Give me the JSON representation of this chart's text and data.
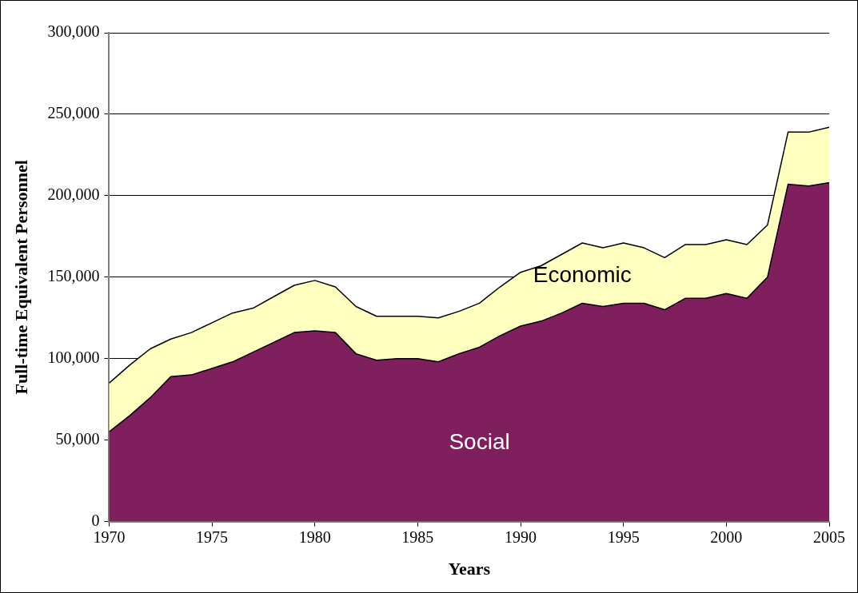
{
  "chart_data": {
    "type": "area",
    "stacked": true,
    "xlabel": "Years",
    "ylabel": "Full-time Equivalent Personnel",
    "x": [
      1970,
      1971,
      1972,
      1973,
      1974,
      1975,
      1976,
      1977,
      1978,
      1979,
      1980,
      1981,
      1982,
      1983,
      1984,
      1985,
      1986,
      1987,
      1988,
      1989,
      1990,
      1991,
      1992,
      1993,
      1994,
      1995,
      1996,
      1997,
      1998,
      1999,
      2000,
      2001,
      2002,
      2003,
      2004,
      2005
    ],
    "series": [
      {
        "name": "Social",
        "color": "#7f1f5e",
        "values": [
          55000,
          65000,
          76000,
          89000,
          90000,
          94000,
          98000,
          104000,
          110000,
          116000,
          117000,
          116000,
          103000,
          99000,
          100000,
          100000,
          98000,
          103000,
          107000,
          114000,
          120000,
          123000,
          128000,
          134000,
          132000,
          134000,
          134000,
          130000,
          137000,
          137000,
          140000,
          137000,
          150000,
          207000,
          206000,
          208000
        ]
      },
      {
        "name": "Economic",
        "color": "#ffffc0",
        "values": [
          30000,
          31000,
          30000,
          23000,
          26000,
          28000,
          30000,
          27000,
          28000,
          29000,
          31000,
          28000,
          29000,
          27000,
          26000,
          26000,
          27000,
          26000,
          27000,
          30000,
          33000,
          34000,
          36000,
          37000,
          36000,
          37000,
          34000,
          32000,
          33000,
          33000,
          33000,
          33000,
          32000,
          32000,
          33000,
          34000
        ]
      }
    ],
    "xlim": [
      1970,
      2005
    ],
    "xticks": [
      1970,
      1975,
      1980,
      1985,
      1990,
      1995,
      2000,
      2005
    ],
    "ylim": [
      0,
      300000
    ],
    "yticks": [
      {
        "value": 0,
        "label": "0"
      },
      {
        "value": 50000,
        "label": "50,000"
      },
      {
        "value": 100000,
        "label": "100,000"
      },
      {
        "value": 150000,
        "label": "150,000"
      },
      {
        "value": 200000,
        "label": "200,000"
      },
      {
        "value": 250000,
        "label": "250,000"
      },
      {
        "value": 300000,
        "label": "300,000"
      }
    ],
    "grid": "y",
    "legend": false
  }
}
